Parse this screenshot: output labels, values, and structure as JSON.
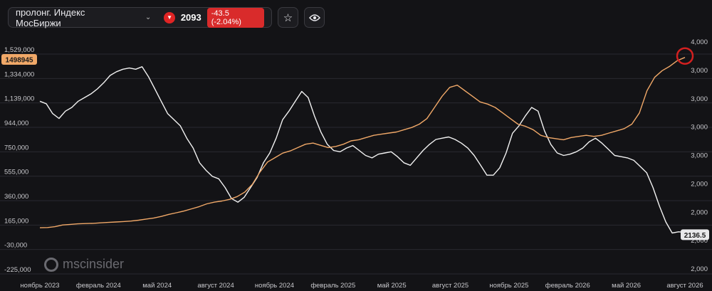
{
  "toolbar": {
    "instrument": "пролонг. Индекс МосБиржи",
    "price": "2093",
    "change": "-43.5 (-2.04%)",
    "direction_icon": "triangle-down-icon",
    "favorite_icon": "star-icon",
    "watch_icon": "eye-icon"
  },
  "brand": {
    "name": "mscinsider"
  },
  "colors": {
    "background": "#131316",
    "series_white": "#f2f2f2",
    "series_orange": "#f0a868",
    "badge_red": "#d92b2b",
    "highlight_ring": "#d32020"
  },
  "chart_data": {
    "type": "line",
    "title": "",
    "grid": "horizontal",
    "x_ticks": [
      "ноябрь 2023",
      "февраль 2024",
      "май 2024",
      "август 2024",
      "ноябрь 2024",
      "февраль 2025",
      "май 2025",
      "август 2025",
      "ноябрь 2025",
      "февраль 2026",
      "май 2026",
      "август 2026"
    ],
    "left_axis": {
      "ticks": [
        "1,529,000",
        "1,334,000",
        "1,139,000",
        "944,000",
        "750,000",
        "555,000",
        "360,000",
        "165,000",
        "-30,000",
        "-225,000"
      ],
      "range": [
        -225000,
        1529000
      ],
      "last_value": "1498945"
    },
    "right_axis": {
      "ticks": [
        "4,000",
        "3,000",
        "3,000",
        "3,000",
        "3,000",
        "2,000",
        "2,000",
        "2,000",
        "2,000"
      ],
      "last_value": "2136.5"
    },
    "series": [
      {
        "axis": "right",
        "color": "#f2f2f2",
        "values": [
          3200,
          3180,
          3100,
          3060,
          3120,
          3150,
          3200,
          3230,
          3260,
          3300,
          3350,
          3410,
          3440,
          3460,
          3470,
          3460,
          3480,
          3400,
          3300,
          3200,
          3100,
          3050,
          3000,
          2900,
          2820,
          2700,
          2640,
          2590,
          2570,
          2500,
          2410,
          2380,
          2420,
          2500,
          2580,
          2700,
          2780,
          2900,
          3050,
          3120,
          3200,
          3280,
          3230,
          3080,
          2950,
          2850,
          2800,
          2790,
          2820,
          2840,
          2800,
          2760,
          2740,
          2770,
          2780,
          2790,
          2750,
          2700,
          2680,
          2740,
          2800,
          2850,
          2890,
          2900,
          2910,
          2890,
          2860,
          2820,
          2760,
          2680,
          2600,
          2600,
          2660,
          2780,
          2940,
          3000,
          3080,
          3150,
          3120,
          2960,
          2850,
          2780,
          2760,
          2770,
          2790,
          2820,
          2870,
          2900,
          2860,
          2810,
          2760,
          2750,
          2740,
          2720,
          2670,
          2620,
          2500,
          2350,
          2220,
          2130,
          2140,
          2136.5
        ],
        "min": 2000,
        "max": 3560
      },
      {
        "axis": "left",
        "color": "#f0a868",
        "values": [
          -30000,
          -28000,
          -20000,
          -5000,
          0,
          5000,
          8000,
          10000,
          14000,
          18000,
          22000,
          26000,
          30000,
          38000,
          48000,
          58000,
          72000,
          90000,
          105000,
          120000,
          140000,
          160000,
          185000,
          200000,
          210000,
          225000,
          250000,
          290000,
          360000,
          470000,
          560000,
          600000,
          640000,
          660000,
          690000,
          720000,
          730000,
          710000,
          690000,
          700000,
          720000,
          750000,
          760000,
          780000,
          800000,
          810000,
          820000,
          830000,
          850000,
          870000,
          900000,
          950000,
          1050000,
          1150000,
          1230000,
          1250000,
          1200000,
          1150000,
          1100000,
          1080000,
          1050000,
          1000000,
          950000,
          900000,
          880000,
          850000,
          800000,
          780000,
          770000,
          760000,
          780000,
          790000,
          800000,
          790000,
          800000,
          820000,
          840000,
          860000,
          900000,
          1000000,
          1200000,
          1320000,
          1380000,
          1420000,
          1470000,
          1498945
        ],
        "min": -225000,
        "max": 1529000
      }
    ]
  }
}
